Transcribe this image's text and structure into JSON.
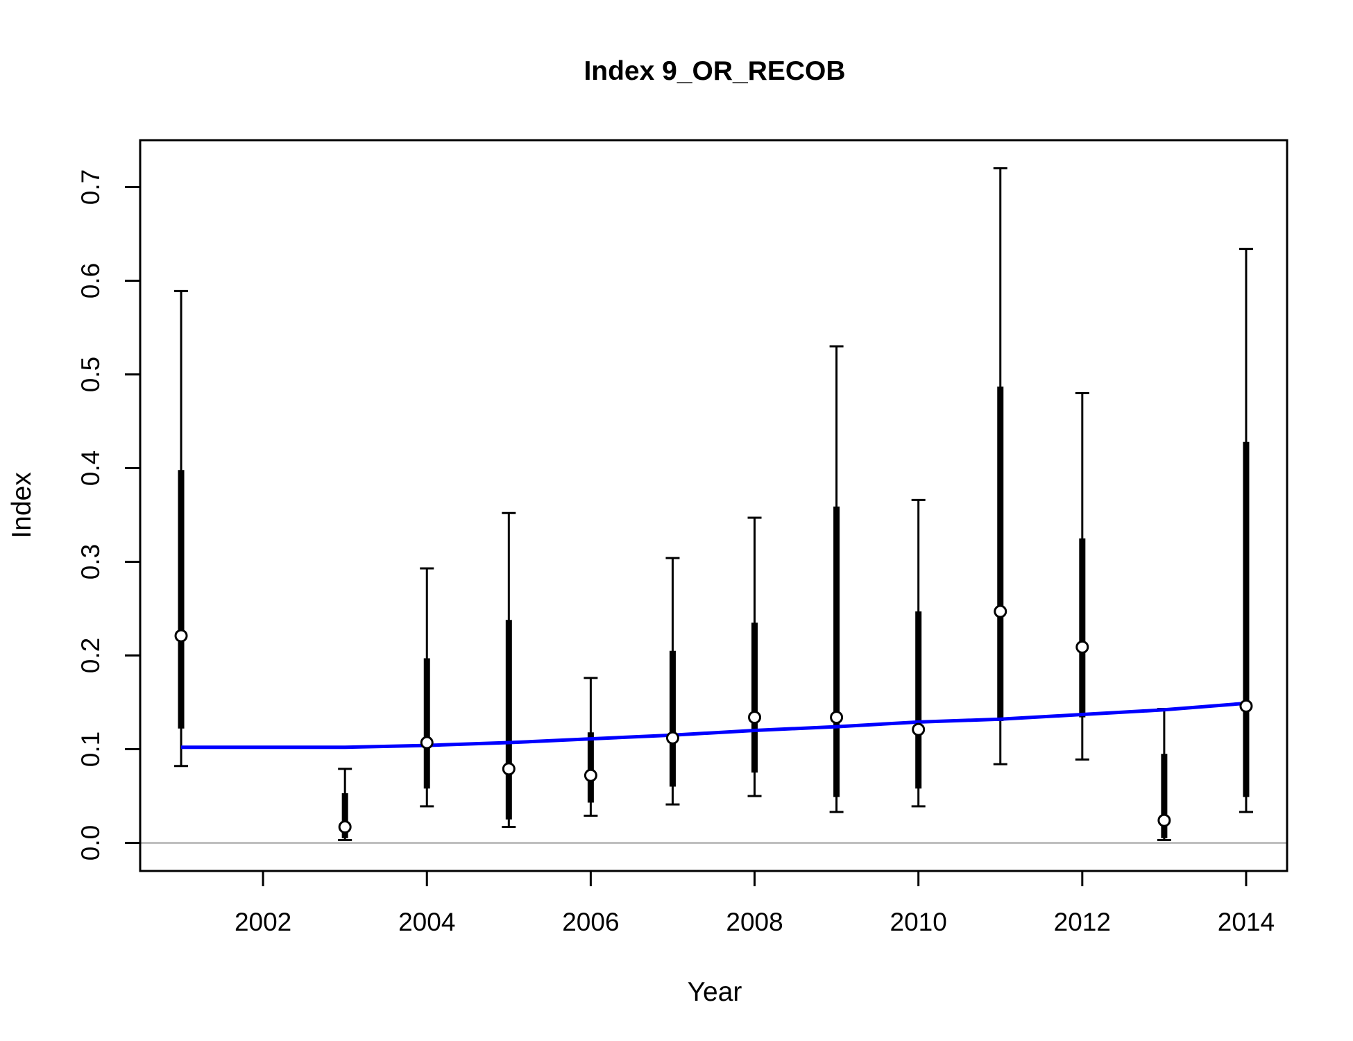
{
  "chart_data": {
    "type": "scatter",
    "title": "Index 9_OR_RECOB",
    "xlabel": "Year",
    "ylabel": "Index",
    "xlim": [
      2000.5,
      2014.5
    ],
    "ylim": [
      -0.03,
      0.75
    ],
    "x_ticks": [
      2002,
      2004,
      2006,
      2008,
      2010,
      2012,
      2014
    ],
    "x_tick_labels": [
      "2002",
      "2004",
      "2006",
      "2008",
      "2010",
      "2012",
      "2014"
    ],
    "y_ticks": [
      0.0,
      0.1,
      0.2,
      0.3,
      0.4,
      0.5,
      0.6,
      0.7
    ],
    "y_tick_labels": [
      "0.0",
      "0.1",
      "0.2",
      "0.3",
      "0.4",
      "0.5",
      "0.6",
      "0.7"
    ],
    "reference_line_y": 0,
    "colors": {
      "points": "#000000",
      "fit_line": "#0000ff",
      "reference_line": "#bebebe"
    },
    "observed": {
      "x": [
        2001,
        2003,
        2004,
        2005,
        2006,
        2007,
        2008,
        2009,
        2010,
        2011,
        2012,
        2013,
        2014
      ],
      "y": [
        0.221,
        0.017,
        0.107,
        0.079,
        0.072,
        0.112,
        0.134,
        0.134,
        0.121,
        0.247,
        0.209,
        0.024,
        0.146
      ],
      "inner_lower": [
        0.122,
        0.005,
        0.058,
        0.025,
        0.043,
        0.06,
        0.075,
        0.049,
        0.058,
        0.13,
        0.134,
        0.005,
        0.049
      ],
      "inner_upper": [
        0.398,
        0.053,
        0.197,
        0.238,
        0.118,
        0.205,
        0.235,
        0.359,
        0.247,
        0.487,
        0.325,
        0.095,
        0.428
      ],
      "outer_lower": [
        0.082,
        0.003,
        0.039,
        0.017,
        0.029,
        0.041,
        0.05,
        0.033,
        0.039,
        0.084,
        0.089,
        0.003,
        0.033
      ],
      "outer_upper": [
        0.589,
        0.079,
        0.293,
        0.352,
        0.176,
        0.304,
        0.347,
        0.53,
        0.366,
        0.72,
        0.48,
        0.143,
        0.634
      ]
    },
    "expected": {
      "x": [
        2001,
        2003,
        2004,
        2005,
        2006,
        2007,
        2008,
        2009,
        2010,
        2011,
        2012,
        2013,
        2014
      ],
      "y": [
        0.102,
        0.102,
        0.104,
        0.107,
        0.111,
        0.115,
        0.12,
        0.124,
        0.129,
        0.132,
        0.137,
        0.142,
        0.149
      ]
    }
  }
}
